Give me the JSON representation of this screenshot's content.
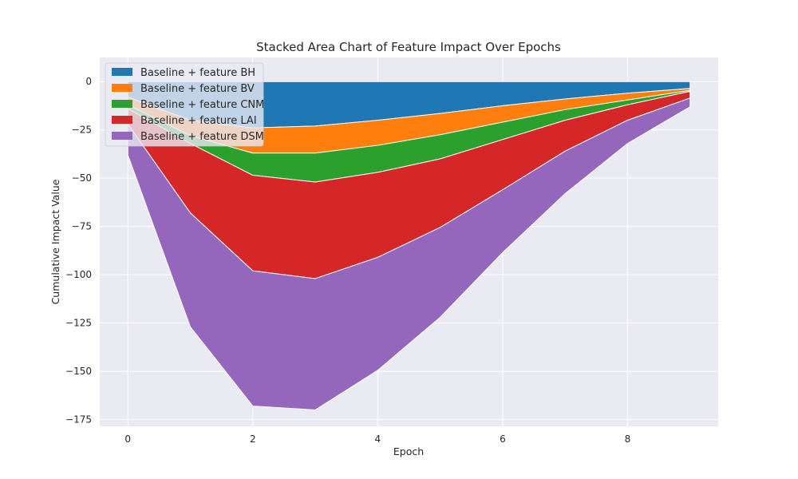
{
  "chart_data": {
    "type": "area",
    "title": "Stacked Area Chart of Feature Impact Over Epochs",
    "xlabel": "Epoch",
    "ylabel": "Cumulative Impact Value",
    "x": [
      0,
      1,
      2,
      3,
      4,
      5,
      6,
      7,
      8,
      9
    ],
    "xlim": [
      -0.45,
      9.45
    ],
    "ylim": [
      -178.5,
      12.5
    ],
    "xticks": [
      0,
      2,
      4,
      6,
      8
    ],
    "yticks": [
      0,
      -25,
      -50,
      -75,
      -100,
      -125,
      -150,
      -175
    ],
    "grid": true,
    "legend_position": "top-left",
    "series": [
      {
        "name": "Baseline + feature BH",
        "color": "#1f77b4",
        "values": [
          -8,
          -20,
          -24,
          -23,
          -20,
          -16.5,
          -12.5,
          -9,
          -6,
          -3.5
        ]
      },
      {
        "name": "Baseline + feature BV",
        "color": "#ff7f0e",
        "values": [
          -4,
          -8,
          -13,
          -14,
          -13,
          -11,
          -8.5,
          -5.5,
          -3.5,
          -1
        ]
      },
      {
        "name": "Baseline + feature CNM",
        "color": "#2ca02c",
        "values": [
          -2,
          -4,
          -11.5,
          -15,
          -14,
          -12.5,
          -9,
          -5.5,
          -2.5,
          -0.5
        ]
      },
      {
        "name": "Baseline + feature LAI",
        "color": "#d62728",
        "values": [
          -8,
          -36,
          -49.5,
          -50,
          -44,
          -35.5,
          -26,
          -16,
          -8,
          -3.5
        ]
      },
      {
        "name": "Baseline + feature DSM",
        "color": "#9467bd",
        "values": [
          -16,
          -59,
          -70,
          -68,
          -58.5,
          -46.5,
          -32.5,
          -22,
          -12,
          -4.5
        ]
      }
    ]
  }
}
